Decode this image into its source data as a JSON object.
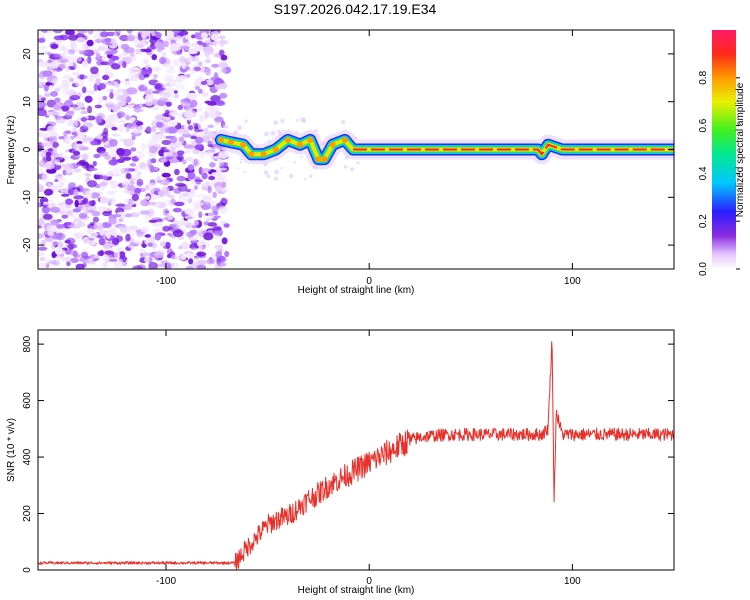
{
  "title": "S197.2026.042.17.19.E34",
  "chart_data": [
    {
      "type": "heatmap",
      "name": "spectrogram",
      "xlabel": "Height of straight line (km)",
      "ylabel": "Frequency (Hz)",
      "xlim": [
        -163,
        150
      ],
      "ylim": [
        -25,
        25
      ],
      "xticks": [
        -100,
        0,
        100
      ],
      "yticks": [
        -20,
        -10,
        0,
        10,
        20
      ],
      "colorbar": {
        "label": "Normalized spectral amplitude",
        "range": [
          0.0,
          1.0
        ],
        "ticks": [
          "0.0",
          "0.2",
          "0.4",
          "0.6",
          "0.8"
        ],
        "tick_values": [
          0.0,
          0.2,
          0.4,
          0.6,
          0.8
        ]
      },
      "noise_region_x": [
        -163,
        -73
      ],
      "signal_track": [
        {
          "x": -73,
          "f": 2
        },
        {
          "x": -68,
          "f": 1.5
        },
        {
          "x": -62,
          "f": 1
        },
        {
          "x": -58,
          "f": -1
        },
        {
          "x": -52,
          "f": -1
        },
        {
          "x": -46,
          "f": 0
        },
        {
          "x": -40,
          "f": 2
        },
        {
          "x": -34,
          "f": 1
        },
        {
          "x": -29,
          "f": 2
        },
        {
          "x": -25,
          "f": -2
        },
        {
          "x": -22,
          "f": -2
        },
        {
          "x": -18,
          "f": 1
        },
        {
          "x": -12,
          "f": 2
        },
        {
          "x": -8,
          "f": 0
        },
        {
          "x": 0,
          "f": 0
        },
        {
          "x": 50,
          "f": 0
        },
        {
          "x": 83,
          "f": 0
        },
        {
          "x": 85,
          "f": -1
        },
        {
          "x": 88,
          "f": 1
        },
        {
          "x": 95,
          "f": 0
        },
        {
          "x": 150,
          "f": 0
        }
      ]
    },
    {
      "type": "line",
      "name": "snr",
      "xlabel": "Height of straight line (km)",
      "ylabel": "SNR (10 * v/v)",
      "xlim": [
        -163,
        150
      ],
      "ylim": [
        0,
        850
      ],
      "xticks": [
        -100,
        0,
        100
      ],
      "yticks": [
        0,
        200,
        400,
        600,
        800
      ],
      "color": "#e8302a",
      "series": [
        {
          "name": "SNR",
          "x": [
            -163,
            -140,
            -120,
            -100,
            -80,
            -66,
            -60,
            -55,
            -50,
            -45,
            -40,
            -35,
            -30,
            -25,
            -20,
            -15,
            -10,
            -5,
            0,
            5,
            10,
            15,
            20,
            25,
            30,
            40,
            50,
            60,
            70,
            80,
            85,
            88,
            90,
            91,
            92,
            95,
            100,
            110,
            120,
            130,
            140,
            150
          ],
          "y": [
            25,
            25,
            25,
            25,
            25,
            25,
            80,
            120,
            160,
            180,
            190,
            220,
            250,
            270,
            300,
            320,
            340,
            360,
            380,
            400,
            420,
            440,
            460,
            470,
            475,
            480,
            480,
            480,
            480,
            480,
            480,
            500,
            820,
            230,
            560,
            480,
            480,
            480,
            480,
            480,
            480,
            480
          ]
        }
      ]
    }
  ]
}
